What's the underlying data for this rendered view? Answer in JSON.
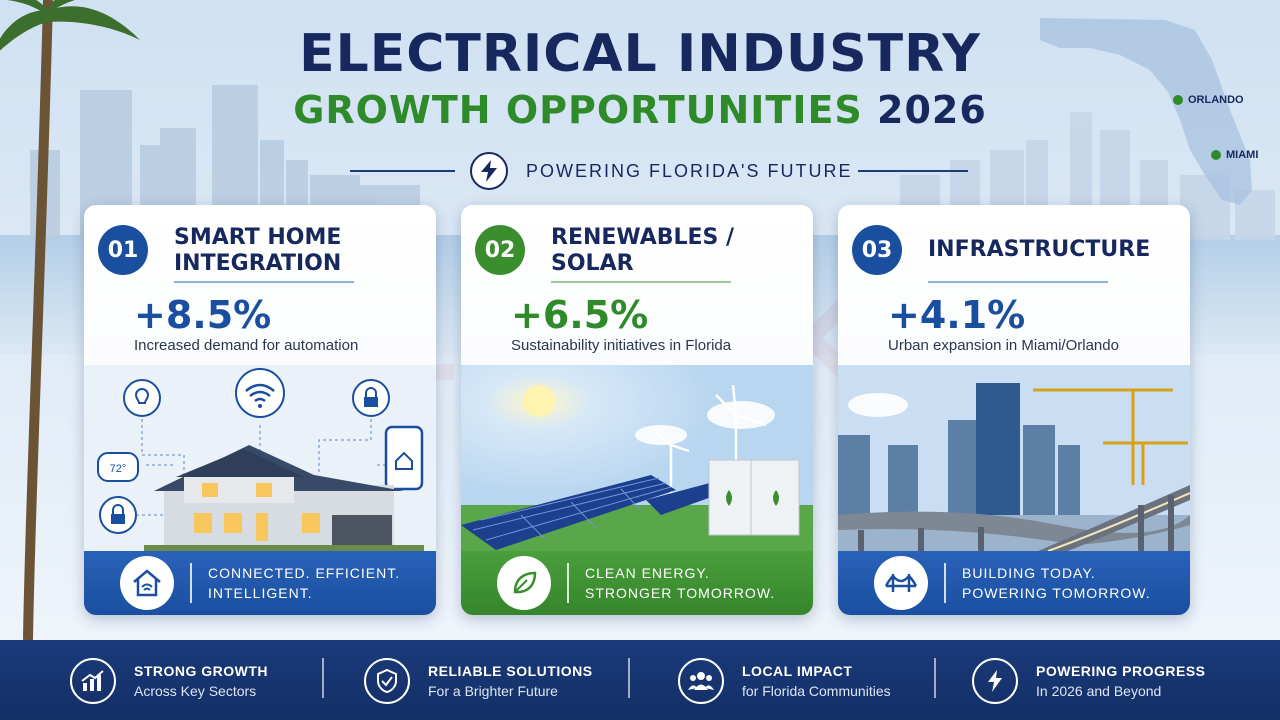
{
  "header": {
    "title": "ELECTRICAL INDUSTRY",
    "subtitle_green": "GROWTH OPPORTUNITIES",
    "subtitle_year": "2026",
    "tagline": "POWERING FLORIDA'S FUTURE"
  },
  "map": {
    "cities": [
      "ORLANDO",
      "MIAMI"
    ]
  },
  "watermark": "SKILLMAKING",
  "cards": [
    {
      "number": "01",
      "title_line1": "SMART HOME",
      "title_line2": "INTEGRATION",
      "stat": "+8.5%",
      "description": "Increased demand for automation",
      "thermostat": "72°",
      "footer_line1": "CONNECTED. EFFICIENT.",
      "footer_line2": "INTELLIGENT.",
      "footer_icon": "smart-home-icon",
      "accent": "#1a4fa0"
    },
    {
      "number": "02",
      "title_line1": "RENEWABLES /",
      "title_line2": "SOLAR",
      "stat": "+6.5%",
      "description": "Sustainability initiatives in Florida",
      "footer_line1": "CLEAN ENERGY.",
      "footer_line2": "STRONGER TOMORROW.",
      "footer_icon": "leaf-icon",
      "accent": "#3a8e2e"
    },
    {
      "number": "03",
      "title_line1": "INFRASTRUCTURE",
      "title_line2": "",
      "stat": "+4.1%",
      "description": "Urban expansion in Miami/Orlando",
      "footer_line1": "BUILDING TODAY.",
      "footer_line2": "POWERING TOMORROW.",
      "footer_icon": "bridge-icon",
      "accent": "#1a4fa0"
    }
  ],
  "features": [
    {
      "title": "STRONG GROWTH",
      "subtitle": "Across Key Sectors",
      "icon": "growth-chart-icon"
    },
    {
      "title": "RELIABLE SOLUTIONS",
      "subtitle": "For a Brighter Future",
      "icon": "shield-check-icon"
    },
    {
      "title": "LOCAL IMPACT",
      "subtitle": "for Florida Communities",
      "icon": "community-icon"
    },
    {
      "title": "POWERING PROGRESS",
      "subtitle": "In 2026 and Beyond",
      "icon": "lightning-icon"
    }
  ],
  "colors": {
    "navy": "#16285e",
    "green": "#2f8a2a",
    "blue": "#1a4fa0",
    "bar": "#1a3a7a"
  }
}
